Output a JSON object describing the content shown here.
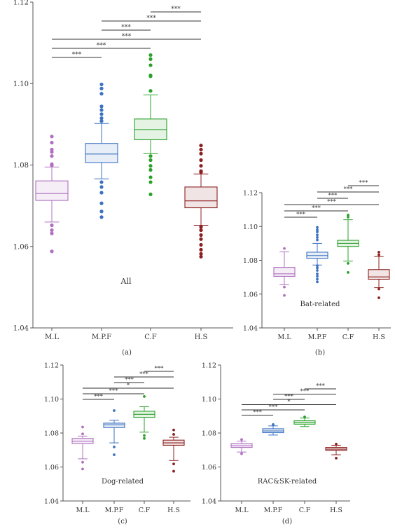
{
  "y_ticks": [
    "1.04",
    "1.06",
    "1.08",
    "1.10",
    "1.12"
  ],
  "categories": [
    "M.L",
    "M.P.F",
    "C.F",
    "H.S"
  ],
  "colors": {
    "M.L": "#b070c0",
    "M.P.F": "#3c72c0",
    "C.F": "#2aa02a",
    "H.S": "#8c2020",
    "axis": "#555555"
  },
  "panels": [
    {
      "id": "a",
      "caption": "(a)",
      "label": "All",
      "boxes": [
        {
          "q1": 1.0713,
          "median": 1.073,
          "q3": 1.0761,
          "wlo": 1.066,
          "whi": 1.0795,
          "outliers": [
            1.087,
            1.0855,
            1.0838,
            1.0832,
            1.0822,
            1.0802,
            1.0799,
            1.0652,
            1.064,
            1.0632,
            1.0588
          ]
        },
        {
          "q1": 1.0806,
          "median": 1.0827,
          "q3": 1.0853,
          "wlo": 1.0766,
          "whi": 1.0902,
          "outliers": [
            1.0998,
            1.0988,
            1.0975,
            1.0944,
            1.0935,
            1.0925,
            1.0915,
            1.0908,
            1.0758,
            1.0746,
            1.0732,
            1.0706,
            1.0686,
            1.0672
          ]
        },
        {
          "q1": 1.0862,
          "median": 1.0887,
          "q3": 1.0913,
          "wlo": 1.0828,
          "whi": 1.0972,
          "outliers": [
            1.107,
            1.106,
            1.1045,
            1.102,
            1.1018,
            1.0982,
            1.0822,
            1.0812,
            1.0798,
            1.0788,
            1.077,
            1.0758,
            1.0728
          ]
        },
        {
          "q1": 1.0695,
          "median": 1.0712,
          "q3": 1.0746,
          "wlo": 1.0652,
          "whi": 1.0778,
          "outliers": [
            1.0848,
            1.0838,
            1.0828,
            1.0812,
            1.0798,
            1.0785,
            1.0782,
            1.0648,
            1.064,
            1.0628,
            1.0618,
            1.0604,
            1.0592,
            1.0582,
            1.0575
          ]
        }
      ],
      "sig": [
        {
          "from": 2,
          "to": 3,
          "label": "***"
        },
        {
          "from": 1,
          "to": 3,
          "label": "***"
        },
        {
          "from": 1,
          "to": 2,
          "label": "***"
        },
        {
          "from": 0,
          "to": 3,
          "label": "***"
        },
        {
          "from": 0,
          "to": 2,
          "label": "***"
        },
        {
          "from": 0,
          "to": 1,
          "label": "***"
        }
      ]
    },
    {
      "id": "b",
      "caption": "(b)",
      "label": "Bat-related",
      "boxes": [
        {
          "q1": 1.0705,
          "median": 1.072,
          "q3": 1.0758,
          "wlo": 1.0655,
          "whi": 1.085,
          "outliers": [
            1.087,
            1.0642,
            1.0592
          ]
        },
        {
          "q1": 1.0812,
          "median": 1.0828,
          "q3": 1.0848,
          "wlo": 1.0772,
          "whi": 1.09,
          "outliers": [
            1.0995,
            1.098,
            1.0968,
            1.095,
            1.0935,
            1.092,
            1.0768,
            1.0755,
            1.074,
            1.072,
            1.0705,
            1.0688,
            1.0672
          ]
        },
        {
          "q1": 1.0882,
          "median": 1.09,
          "q3": 1.0918,
          "wlo": 1.0795,
          "whi": 1.104,
          "outliers": [
            1.1068,
            1.1055,
            1.0782,
            1.0728
          ]
        },
        {
          "q1": 1.0688,
          "median": 1.0702,
          "q3": 1.0745,
          "wlo": 1.0638,
          "whi": 1.0822,
          "outliers": [
            1.0848,
            1.0832,
            1.063,
            1.0578
          ]
        }
      ],
      "sig": [
        {
          "from": 2,
          "to": 3,
          "label": "***"
        },
        {
          "from": 1,
          "to": 3,
          "label": "***"
        },
        {
          "from": 1,
          "to": 2,
          "label": "***"
        },
        {
          "from": 0,
          "to": 3,
          "label": "***"
        },
        {
          "from": 0,
          "to": 2,
          "label": "***"
        },
        {
          "from": 0,
          "to": 1,
          "label": "***"
        }
      ]
    },
    {
      "id": "c",
      "caption": "(c)",
      "label": "Dog-related",
      "boxes": [
        {
          "q1": 1.0738,
          "median": 1.0752,
          "q3": 1.0768,
          "wlo": 1.0648,
          "whi": 1.0782,
          "outliers": [
            1.0835,
            1.0795,
            1.0628,
            1.0588
          ]
        },
        {
          "q1": 1.0832,
          "median": 1.0848,
          "q3": 1.0858,
          "wlo": 1.0742,
          "whi": 1.0875,
          "outliers": [
            1.0932,
            1.0718,
            1.0672
          ]
        },
        {
          "q1": 1.0892,
          "median": 1.091,
          "q3": 1.0928,
          "wlo": 1.0805,
          "whi": 1.0955,
          "outliers": [
            1.1015,
            1.0785,
            1.0768
          ]
        },
        {
          "q1": 1.0728,
          "median": 1.0742,
          "q3": 1.0758,
          "wlo": 1.0638,
          "whi": 1.0775,
          "outliers": [
            1.0818,
            1.0792,
            1.0618,
            1.0575
          ]
        }
      ],
      "sig": [
        {
          "from": 2,
          "to": 3,
          "label": "***"
        },
        {
          "from": 1,
          "to": 3,
          "label": "***"
        },
        {
          "from": 1,
          "to": 2,
          "label": "***"
        },
        {
          "from": 0,
          "to": 3,
          "label": "*"
        },
        {
          "from": 0,
          "to": 2,
          "label": "***"
        },
        {
          "from": 0,
          "to": 1,
          "label": "***"
        }
      ]
    },
    {
      "id": "d",
      "caption": "(d)",
      "label": "RAC&SK-related",
      "boxes": [
        {
          "q1": 1.0715,
          "median": 1.0725,
          "q3": 1.0738,
          "wlo": 1.0688,
          "whi": 1.0752,
          "outliers": [
            1.0762,
            1.0678
          ]
        },
        {
          "q1": 1.0802,
          "median": 1.0812,
          "q3": 1.0825,
          "wlo": 1.0788,
          "whi": 1.0842,
          "outliers": [
            1.085
          ]
        },
        {
          "q1": 1.0852,
          "median": 1.0862,
          "q3": 1.0872,
          "wlo": 1.0838,
          "whi": 1.0888,
          "outliers": [
            1.0895
          ]
        },
        {
          "q1": 1.0698,
          "median": 1.0705,
          "q3": 1.0715,
          "wlo": 1.0672,
          "whi": 1.0728,
          "outliers": [
            1.0735,
            1.0652
          ]
        }
      ],
      "sig": [
        {
          "from": 2,
          "to": 3,
          "label": "***"
        },
        {
          "from": 1,
          "to": 3,
          "label": "***"
        },
        {
          "from": 1,
          "to": 2,
          "label": "***"
        },
        {
          "from": 0,
          "to": 3,
          "label": "*"
        },
        {
          "from": 0,
          "to": 2,
          "label": "***"
        },
        {
          "from": 0,
          "to": 1,
          "label": "***"
        }
      ]
    }
  ],
  "chart_data": [
    {
      "type": "box",
      "title": "",
      "xlabel": "",
      "ylabel": "",
      "annotation": "All",
      "ylim": [
        1.04,
        1.12
      ],
      "categories": [
        "M.L",
        "M.P.F",
        "C.F",
        "H.S"
      ],
      "medians": [
        1.073,
        1.0827,
        1.0887,
        1.0712
      ],
      "quartiles": [
        [
          1.0713,
          1.0761
        ],
        [
          1.0806,
          1.0853
        ],
        [
          1.0862,
          1.0913
        ],
        [
          1.0695,
          1.0746
        ]
      ],
      "whiskers": [
        [
          1.066,
          1.0795
        ],
        [
          1.0766,
          1.0902
        ],
        [
          1.0828,
          1.0972
        ],
        [
          1.0652,
          1.0778
        ]
      ],
      "significance": [
        "***",
        "***",
        "***",
        "***",
        "***",
        "***"
      ]
    },
    {
      "type": "box",
      "title": "",
      "xlabel": "",
      "ylabel": "",
      "annotation": "Bat-related",
      "ylim": [
        1.04,
        1.12
      ],
      "categories": [
        "M.L",
        "M.P.F",
        "C.F",
        "H.S"
      ],
      "medians": [
        1.072,
        1.0828,
        1.09,
        1.0702
      ],
      "quartiles": [
        [
          1.0705,
          1.0758
        ],
        [
          1.0812,
          1.0848
        ],
        [
          1.0882,
          1.0918
        ],
        [
          1.0688,
          1.0745
        ]
      ],
      "whiskers": [
        [
          1.0655,
          1.085
        ],
        [
          1.0772,
          1.09
        ],
        [
          1.0795,
          1.104
        ],
        [
          1.0638,
          1.0822
        ]
      ],
      "significance": [
        "***",
        "***",
        "***",
        "***",
        "***",
        "***"
      ]
    },
    {
      "type": "box",
      "title": "",
      "xlabel": "",
      "ylabel": "",
      "annotation": "Dog-related",
      "ylim": [
        1.04,
        1.12
      ],
      "categories": [
        "M.L",
        "M.P.F",
        "C.F",
        "H.S"
      ],
      "medians": [
        1.0752,
        1.0848,
        1.091,
        1.0742
      ],
      "quartiles": [
        [
          1.0738,
          1.0768
        ],
        [
          1.0832,
          1.0858
        ],
        [
          1.0892,
          1.0928
        ],
        [
          1.0728,
          1.0758
        ]
      ],
      "whiskers": [
        [
          1.0648,
          1.0782
        ],
        [
          1.0742,
          1.0875
        ],
        [
          1.0805,
          1.0955
        ],
        [
          1.0638,
          1.0775
        ]
      ],
      "significance": [
        "***",
        "***",
        "***",
        "*",
        "***",
        "***"
      ]
    },
    {
      "type": "box",
      "title": "",
      "xlabel": "",
      "ylabel": "",
      "annotation": "RAC&SK-related",
      "ylim": [
        1.04,
        1.12
      ],
      "categories": [
        "M.L",
        "M.P.F",
        "C.F",
        "H.S"
      ],
      "medians": [
        1.0725,
        1.0812,
        1.0862,
        1.0705
      ],
      "quartiles": [
        [
          1.0715,
          1.0738
        ],
        [
          1.0802,
          1.0825
        ],
        [
          1.0852,
          1.0872
        ],
        [
          1.0698,
          1.0715
        ]
      ],
      "whiskers": [
        [
          1.0688,
          1.0752
        ],
        [
          1.0788,
          1.0842
        ],
        [
          1.0838,
          1.0888
        ],
        [
          1.0672,
          1.0728
        ]
      ],
      "significance": [
        "***",
        "***",
        "***",
        "*",
        "***",
        "***"
      ]
    }
  ]
}
